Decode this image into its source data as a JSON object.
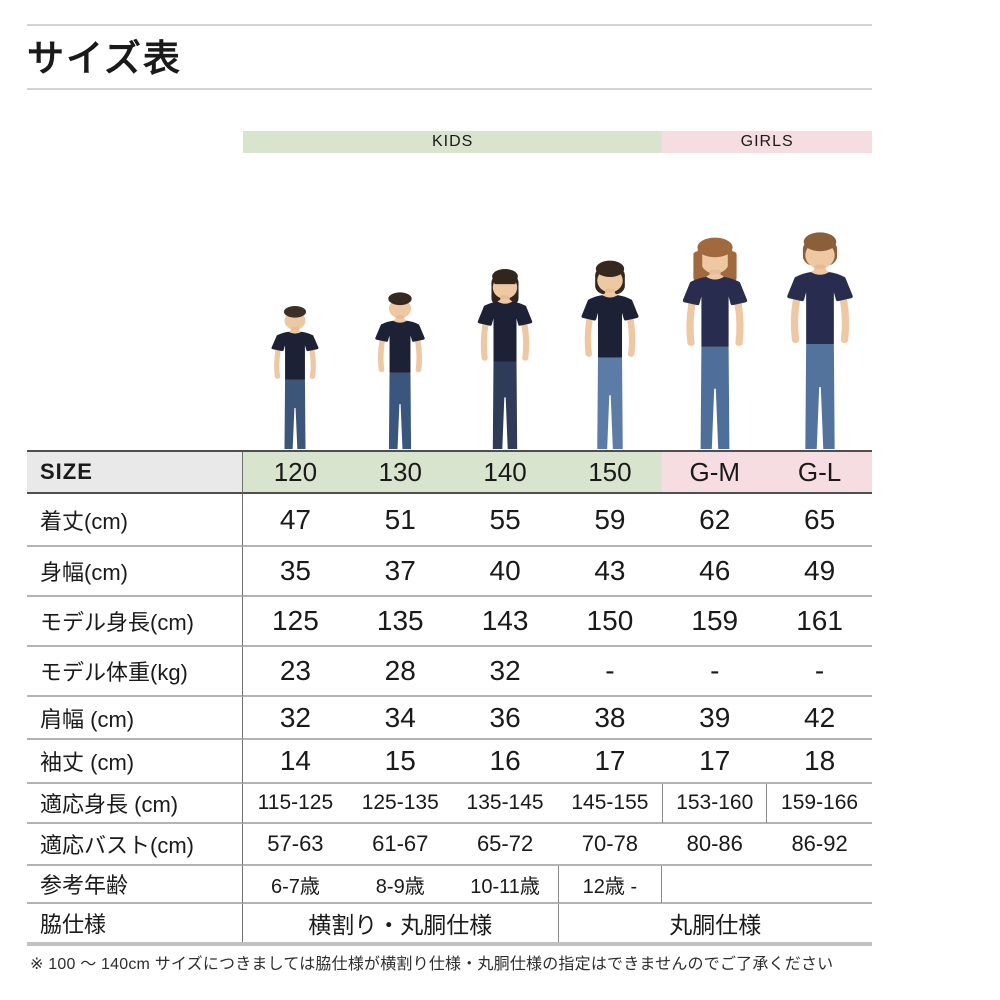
{
  "page": {
    "title": "サイズ表",
    "footnote": "※ 100 ～ 140cm サイズにつきましては脇仕様が横割り仕様・丸胴仕様の指定はできませんのでご了承ください"
  },
  "category_bands": [
    {
      "label": "KIDS",
      "columns": 4,
      "color": "#d8e4ce"
    },
    {
      "label": "GIRLS",
      "columns": 2,
      "color": "#f5dde1"
    }
  ],
  "size_table": {
    "corner_label": "SIZE",
    "columns": [
      {
        "size": "120",
        "group": "KIDS"
      },
      {
        "size": "130",
        "group": "KIDS"
      },
      {
        "size": "140",
        "group": "KIDS"
      },
      {
        "size": "150",
        "group": "KIDS"
      },
      {
        "size": "G-M",
        "group": "GIRLS"
      },
      {
        "size": "G-L",
        "group": "GIRLS"
      }
    ],
    "rows": [
      {
        "key": "body-length",
        "label": "着丈(cm)",
        "values": [
          "47",
          "51",
          "55",
          "59",
          "62",
          "65"
        ]
      },
      {
        "key": "body-width",
        "label": "身幅(cm)",
        "values": [
          "35",
          "37",
          "40",
          "43",
          "46",
          "49"
        ]
      },
      {
        "key": "model-height",
        "label": "モデル身長(cm)",
        "values": [
          "125",
          "135",
          "143",
          "150",
          "159",
          "161"
        ]
      },
      {
        "key": "model-weight",
        "label": "モデル体重(kg)",
        "values": [
          "23",
          "28",
          "32",
          "-",
          "-",
          "-"
        ]
      },
      {
        "key": "shoulder-width",
        "label": "肩幅 (cm)",
        "values": [
          "32",
          "34",
          "36",
          "38",
          "39",
          "42"
        ]
      },
      {
        "key": "sleeve-length",
        "label": "袖丈 (cm)",
        "values": [
          "14",
          "15",
          "16",
          "17",
          "17",
          "18"
        ]
      },
      {
        "key": "fit-height",
        "label": "適応身長 (cm)",
        "values": [
          "115-125",
          "125-135",
          "135-145",
          "145-155",
          "153-160",
          "159-166"
        ]
      },
      {
        "key": "fit-bust",
        "label": "適応バスト(cm)",
        "values": [
          "57-63",
          "61-67",
          "65-72",
          "70-78",
          "80-86",
          "86-92"
        ]
      },
      {
        "key": "reference-age",
        "label": "参考年齢",
        "values": [
          "6-7歳",
          "8-9歳",
          "10-11歳",
          "12歳 -",
          "",
          ""
        ]
      },
      {
        "key": "side-spec",
        "label": "脇仕様",
        "spans": [
          {
            "text": "横割り・丸胴仕様",
            "columns": 3
          },
          {
            "text": "丸胴仕様",
            "columns": 3
          }
        ]
      }
    ]
  },
  "models": [
    {
      "name": "model-photo-120",
      "size": "120",
      "figure": "boy-short-hair-navy-tee-jeans"
    },
    {
      "name": "model-photo-130",
      "size": "130",
      "figure": "boy-short-hair-navy-tee-jeans"
    },
    {
      "name": "model-photo-140",
      "size": "140",
      "figure": "girl-bangs-navy-tee-dark-jeans"
    },
    {
      "name": "model-photo-150",
      "size": "150",
      "figure": "girl-bob-navy-tee-jeans"
    },
    {
      "name": "model-photo-G-M",
      "size": "G-M",
      "figure": "woman-layered-brown-hair-navy-tee-jeans"
    },
    {
      "name": "model-photo-G-L",
      "size": "G-L",
      "figure": "woman-hair-back-navy-tee-jeans"
    }
  ],
  "colors": {
    "kids_band": "#d8e4ce",
    "girls_band": "#f5dde1",
    "corner_bg": "#e9e9e9",
    "tshirt_navy_kids": "#1d2136",
    "tshirt_navy_girls": "#282c4e",
    "skin": "#eec7a3"
  }
}
